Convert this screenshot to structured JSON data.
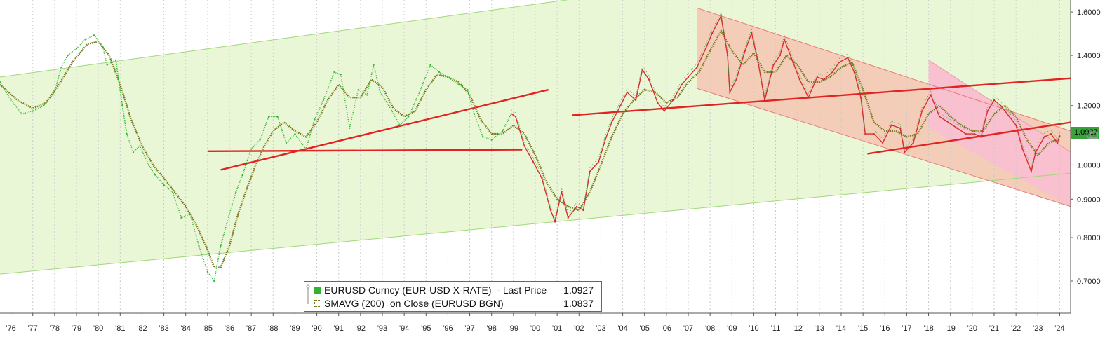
{
  "chart_data": {
    "type": "line",
    "title": "",
    "x_tick_labels": [
      "'76",
      "'77",
      "'78",
      "'79",
      "'80",
      "'81",
      "'82",
      "'83",
      "'84",
      "'85",
      "'86",
      "'87",
      "'88",
      "'89",
      "'90",
      "'91",
      "'92",
      "'93",
      "'94",
      "'95",
      "'96",
      "'97",
      "'98",
      "'99",
      "'00",
      "'01",
      "'02",
      "'03",
      "'04",
      "'05",
      "'06",
      "'07",
      "'08",
      "'09",
      "'10",
      "'11",
      "'12",
      "'13",
      "'14",
      "'15",
      "'16",
      "'17",
      "'18",
      "'19",
      "'20",
      "'21",
      "'22",
      "'23",
      "'24"
    ],
    "x_range": [
      1975.5,
      2024.5
    ],
    "y_tick_labels": [
      "0.7000",
      "0.8000",
      "0.9000",
      "1.0000",
      "1.2000",
      "1.4000",
      "1.6000"
    ],
    "y_ticks": [
      0.7,
      0.8,
      0.9,
      1.0,
      1.2,
      1.4,
      1.6
    ],
    "y_scale": "log",
    "y_range": [
      0.634,
      1.66
    ],
    "grid": "vertical dashed",
    "legend_position": "bottom-center",
    "series": [
      {
        "name": "EURUSD Curncy (EUR-USD X-RATE) - Last Price",
        "last_value": "1.0927",
        "color": "#2fb52f",
        "color_modern": "#d32f2f",
        "style": "dotted-then-candles",
        "points": [
          [
            1975.5,
            1.29
          ],
          [
            1976.0,
            1.22
          ],
          [
            1976.5,
            1.17
          ],
          [
            1977.0,
            1.18
          ],
          [
            1977.5,
            1.2
          ],
          [
            1978.0,
            1.25
          ],
          [
            1978.3,
            1.35
          ],
          [
            1978.6,
            1.4
          ],
          [
            1979.0,
            1.43
          ],
          [
            1979.4,
            1.47
          ],
          [
            1979.8,
            1.49
          ],
          [
            1980.2,
            1.44
          ],
          [
            1980.4,
            1.36
          ],
          [
            1980.8,
            1.38
          ],
          [
            1981.1,
            1.2
          ],
          [
            1981.3,
            1.1
          ],
          [
            1981.6,
            1.04
          ],
          [
            1981.9,
            1.06
          ],
          [
            1982.3,
            1.0
          ],
          [
            1982.6,
            0.97
          ],
          [
            1983.0,
            0.94
          ],
          [
            1983.4,
            0.92
          ],
          [
            1983.8,
            0.85
          ],
          [
            1984.2,
            0.86
          ],
          [
            1984.6,
            0.78
          ],
          [
            1985.0,
            0.72
          ],
          [
            1985.3,
            0.7
          ],
          [
            1985.6,
            0.78
          ],
          [
            1986.0,
            0.86
          ],
          [
            1986.3,
            0.92
          ],
          [
            1986.6,
            0.97
          ],
          [
            1987.0,
            1.05
          ],
          [
            1987.4,
            1.08
          ],
          [
            1987.8,
            1.16
          ],
          [
            1988.2,
            1.16
          ],
          [
            1988.6,
            1.07
          ],
          [
            1989.0,
            1.1
          ],
          [
            1989.5,
            1.05
          ],
          [
            1989.9,
            1.15
          ],
          [
            1990.3,
            1.22
          ],
          [
            1990.8,
            1.33
          ],
          [
            1991.1,
            1.32
          ],
          [
            1991.5,
            1.12
          ],
          [
            1991.9,
            1.26
          ],
          [
            1992.3,
            1.24
          ],
          [
            1992.6,
            1.36
          ],
          [
            1992.9,
            1.25
          ],
          [
            1993.3,
            1.2
          ],
          [
            1993.8,
            1.13
          ],
          [
            1994.2,
            1.16
          ],
          [
            1994.7,
            1.25
          ],
          [
            1995.2,
            1.36
          ],
          [
            1995.6,
            1.33
          ],
          [
            1996.0,
            1.31
          ],
          [
            1996.5,
            1.28
          ],
          [
            1996.9,
            1.26
          ],
          [
            1997.2,
            1.17
          ],
          [
            1997.6,
            1.09
          ],
          [
            1998.0,
            1.08
          ],
          [
            1998.5,
            1.11
          ],
          [
            1998.9,
            1.17
          ],
          [
            1999.1,
            1.16
          ],
          [
            1999.5,
            1.06
          ],
          [
            1999.9,
            1.01
          ],
          [
            2000.3,
            0.96
          ],
          [
            2000.7,
            0.87
          ],
          [
            2000.9,
            0.84
          ],
          [
            2001.2,
            0.92
          ],
          [
            2001.5,
            0.85
          ],
          [
            2001.9,
            0.88
          ],
          [
            2002.2,
            0.87
          ],
          [
            2002.5,
            0.98
          ],
          [
            2002.9,
            1.01
          ],
          [
            2003.2,
            1.08
          ],
          [
            2003.5,
            1.14
          ],
          [
            2003.9,
            1.2
          ],
          [
            2004.2,
            1.25
          ],
          [
            2004.6,
            1.22
          ],
          [
            2004.9,
            1.34
          ],
          [
            2005.2,
            1.3
          ],
          [
            2005.6,
            1.21
          ],
          [
            2005.9,
            1.18
          ],
          [
            2006.3,
            1.22
          ],
          [
            2006.7,
            1.28
          ],
          [
            2007.0,
            1.31
          ],
          [
            2007.4,
            1.35
          ],
          [
            2007.8,
            1.43
          ],
          [
            2008.1,
            1.5
          ],
          [
            2008.5,
            1.58
          ],
          [
            2008.8,
            1.4
          ],
          [
            2008.9,
            1.25
          ],
          [
            2009.2,
            1.3
          ],
          [
            2009.6,
            1.42
          ],
          [
            2009.9,
            1.5
          ],
          [
            2010.2,
            1.37
          ],
          [
            2010.5,
            1.22
          ],
          [
            2010.9,
            1.36
          ],
          [
            2011.2,
            1.4
          ],
          [
            2011.4,
            1.47
          ],
          [
            2011.8,
            1.37
          ],
          [
            2012.1,
            1.3
          ],
          [
            2012.5,
            1.23
          ],
          [
            2012.9,
            1.31
          ],
          [
            2013.2,
            1.3
          ],
          [
            2013.6,
            1.33
          ],
          [
            2013.9,
            1.37
          ],
          [
            2014.3,
            1.39
          ],
          [
            2014.6,
            1.33
          ],
          [
            2014.9,
            1.23
          ],
          [
            2015.1,
            1.1
          ],
          [
            2015.5,
            1.1
          ],
          [
            2015.9,
            1.07
          ],
          [
            2016.3,
            1.13
          ],
          [
            2016.7,
            1.12
          ],
          [
            2016.9,
            1.04
          ],
          [
            2017.3,
            1.07
          ],
          [
            2017.7,
            1.18
          ],
          [
            2018.1,
            1.24
          ],
          [
            2018.5,
            1.16
          ],
          [
            2018.9,
            1.14
          ],
          [
            2019.3,
            1.12
          ],
          [
            2019.7,
            1.1
          ],
          [
            2020.1,
            1.1
          ],
          [
            2020.4,
            1.09
          ],
          [
            2020.7,
            1.18
          ],
          [
            2021.0,
            1.22
          ],
          [
            2021.3,
            1.2
          ],
          [
            2021.7,
            1.16
          ],
          [
            2022.0,
            1.13
          ],
          [
            2022.3,
            1.05
          ],
          [
            2022.7,
            0.98
          ],
          [
            2022.9,
            1.04
          ],
          [
            2023.3,
            1.09
          ],
          [
            2023.6,
            1.1
          ],
          [
            2023.9,
            1.07
          ],
          [
            2024.0,
            1.0927
          ]
        ]
      },
      {
        "name": "SMAVG (200) on Close (EURUSD BGN)",
        "last_value": "1.0837",
        "color": "#7a7a1f",
        "style": "dotted",
        "points": [
          [
            1975.5,
            1.28
          ],
          [
            1976.3,
            1.22
          ],
          [
            1977.0,
            1.19
          ],
          [
            1977.6,
            1.21
          ],
          [
            1978.2,
            1.28
          ],
          [
            1978.8,
            1.37
          ],
          [
            1979.5,
            1.45
          ],
          [
            1980.0,
            1.46
          ],
          [
            1980.5,
            1.4
          ],
          [
            1981.0,
            1.28
          ],
          [
            1981.5,
            1.15
          ],
          [
            1982.0,
            1.06
          ],
          [
            1982.5,
            1.0
          ],
          [
            1983.0,
            0.96
          ],
          [
            1983.5,
            0.92
          ],
          [
            1984.0,
            0.88
          ],
          [
            1984.5,
            0.83
          ],
          [
            1985.0,
            0.77
          ],
          [
            1985.3,
            0.73
          ],
          [
            1985.6,
            0.73
          ],
          [
            1986.0,
            0.78
          ],
          [
            1986.4,
            0.86
          ],
          [
            1986.8,
            0.93
          ],
          [
            1987.2,
            1.0
          ],
          [
            1987.6,
            1.06
          ],
          [
            1988.0,
            1.11
          ],
          [
            1988.5,
            1.14
          ],
          [
            1989.0,
            1.11
          ],
          [
            1989.5,
            1.09
          ],
          [
            1990.0,
            1.14
          ],
          [
            1990.5,
            1.22
          ],
          [
            1991.0,
            1.28
          ],
          [
            1991.5,
            1.23
          ],
          [
            1992.0,
            1.23
          ],
          [
            1992.5,
            1.3
          ],
          [
            1993.0,
            1.27
          ],
          [
            1993.5,
            1.19
          ],
          [
            1994.0,
            1.16
          ],
          [
            1994.5,
            1.18
          ],
          [
            1995.0,
            1.26
          ],
          [
            1995.5,
            1.32
          ],
          [
            1996.0,
            1.31
          ],
          [
            1996.5,
            1.29
          ],
          [
            1997.0,
            1.24
          ],
          [
            1997.5,
            1.15
          ],
          [
            1998.0,
            1.1
          ],
          [
            1998.5,
            1.1
          ],
          [
            1999.0,
            1.13
          ],
          [
            1999.5,
            1.1
          ],
          [
            2000.0,
            1.03
          ],
          [
            2000.5,
            0.95
          ],
          [
            2001.0,
            0.9
          ],
          [
            2001.5,
            0.88
          ],
          [
            2002.0,
            0.87
          ],
          [
            2002.5,
            0.92
          ],
          [
            2003.0,
            1.0
          ],
          [
            2003.5,
            1.09
          ],
          [
            2004.0,
            1.17
          ],
          [
            2004.5,
            1.22
          ],
          [
            2005.0,
            1.26
          ],
          [
            2005.5,
            1.25
          ],
          [
            2006.0,
            1.21
          ],
          [
            2006.5,
            1.23
          ],
          [
            2007.0,
            1.29
          ],
          [
            2007.5,
            1.33
          ],
          [
            2008.0,
            1.42
          ],
          [
            2008.5,
            1.51
          ],
          [
            2009.0,
            1.42
          ],
          [
            2009.5,
            1.36
          ],
          [
            2010.0,
            1.41
          ],
          [
            2010.5,
            1.33
          ],
          [
            2011.0,
            1.33
          ],
          [
            2011.5,
            1.4
          ],
          [
            2012.0,
            1.36
          ],
          [
            2012.5,
            1.29
          ],
          [
            2013.0,
            1.29
          ],
          [
            2013.5,
            1.31
          ],
          [
            2014.0,
            1.35
          ],
          [
            2014.5,
            1.37
          ],
          [
            2015.0,
            1.26
          ],
          [
            2015.5,
            1.14
          ],
          [
            2016.0,
            1.11
          ],
          [
            2016.5,
            1.11
          ],
          [
            2017.0,
            1.09
          ],
          [
            2017.5,
            1.1
          ],
          [
            2018.0,
            1.17
          ],
          [
            2018.5,
            1.2
          ],
          [
            2019.0,
            1.16
          ],
          [
            2019.5,
            1.13
          ],
          [
            2020.0,
            1.11
          ],
          [
            2020.5,
            1.11
          ],
          [
            2021.0,
            1.17
          ],
          [
            2021.5,
            1.2
          ],
          [
            2022.0,
            1.16
          ],
          [
            2022.5,
            1.08
          ],
          [
            2023.0,
            1.03
          ],
          [
            2023.5,
            1.07
          ],
          [
            2024.0,
            1.0837
          ]
        ]
      }
    ],
    "annotations": {
      "channel_upper": [
        [
          1975.5,
          1.31
        ],
        [
          2024.5,
          2.05
        ]
      ],
      "channel_lower": [
        [
          1975.5,
          0.715
        ],
        [
          2024.5,
          0.975
        ]
      ],
      "channel_fill": "#eaf7d6",
      "channel_line": "#9fd87a",
      "down_channel_upper": [
        [
          2007.4,
          1.62
        ],
        [
          2024.5,
          1.11
        ]
      ],
      "down_channel_lower": [
        [
          2007.4,
          1.265
        ],
        [
          2024.5,
          0.88
        ]
      ],
      "down_channel_fill": "#f3cdb8",
      "down_channel_line": "#e77b7b",
      "down_channel_inner_upper": [
        [
          2018.0,
          1.38
        ],
        [
          2024.5,
          1.04
        ]
      ],
      "down_channel_inner_lower": [
        [
          2018.0,
          1.12
        ],
        [
          2024.5,
          0.88
        ]
      ],
      "down_channel_inner_fill": "#f9c0cf",
      "trend_lines": [
        [
          [
            1985.0,
            1.043
          ],
          [
            1999.4,
            1.048
          ]
        ],
        [
          [
            1985.6,
            0.985
          ],
          [
            2000.6,
            1.26
          ]
        ],
        [
          [
            2001.7,
            1.165
          ],
          [
            2024.5,
            1.305
          ]
        ],
        [
          [
            2015.2,
            1.035
          ],
          [
            2024.5,
            1.14
          ]
        ]
      ],
      "trend_color": "#e32222"
    },
    "legend": {
      "row1_label": "EURUSD Curncy (EUR-USD X-RATE)  - Last Price",
      "row1_value": "1.0927",
      "row2_label": "SMAVG (200)  on Close (EURUSD BGN)",
      "row2_value": "1.0837",
      "row1_color": "#2fb52f",
      "row2_color": "#7a7a1f"
    },
    "last_price_badge": "1.0927"
  }
}
